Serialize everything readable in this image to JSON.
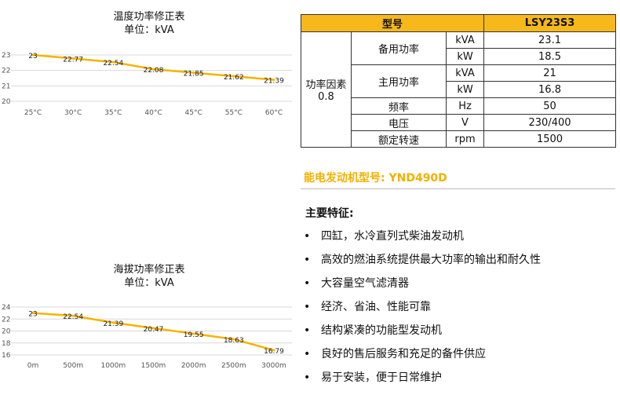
{
  "chart_data": [
    {
      "type": "line",
      "title": "温度功率修正表",
      "subtitle": "单位：kVA",
      "categories": [
        "25°C",
        "30°C",
        "35°C",
        "40°C",
        "45°C",
        "55°C",
        "60°C"
      ],
      "values": [
        23,
        22.77,
        22.54,
        22.08,
        21.85,
        21.62,
        21.39
      ],
      "data_labels": [
        "23",
        "22.77",
        "22.54",
        "22.08",
        "21.85",
        "21.62",
        "21.39"
      ],
      "yticks": [
        "23",
        "22",
        "21",
        "20"
      ],
      "ylim": [
        20,
        23
      ],
      "grid": true,
      "color": "#f5b400"
    },
    {
      "type": "line",
      "title": "海拔功率修正表",
      "subtitle": "单位：kVA",
      "categories": [
        "0m",
        "500m",
        "1000m",
        "1500m",
        "2000m",
        "2500m",
        "3000m"
      ],
      "values": [
        23,
        22.54,
        21.39,
        20.47,
        19.55,
        18.63,
        16.79
      ],
      "data_labels": [
        "23",
        "22.54",
        "21.39",
        "20.47",
        "19.55",
        "18.63",
        "16.79"
      ],
      "yticks": [
        "24",
        "22",
        "20",
        "18",
        "16"
      ],
      "ylim": [
        16,
        24
      ],
      "grid": true,
      "color": "#f5b400"
    }
  ],
  "spec_table": {
    "header_label": "型号",
    "header_value": "LSY23S3",
    "power_factor_label": "功率因素",
    "power_factor_value": "0.8",
    "standby_label": "备用功率",
    "prime_label": "主用功率",
    "standby_kva_unit": "kVA",
    "standby_kva": "23.1",
    "standby_kw_unit": "kW",
    "standby_kw": "18.5",
    "prime_kva_unit": "kVA",
    "prime_kva": "21",
    "prime_kw_unit": "kW",
    "prime_kw": "16.8",
    "freq_label": "频率",
    "freq_unit": "Hz",
    "freq_value": "50",
    "voltage_label": "电压",
    "voltage_unit": "V",
    "voltage_value": "230/400",
    "speed_label": "额定转速",
    "speed_unit": "rpm",
    "speed_value": "1500"
  },
  "engine_model": "能电发动机型号: YND490D",
  "features_title": "主要特征:",
  "bullet": "•",
  "features": [
    "四缸，水冷直列式柴油发动机",
    "高效的燃油系统提供最大功率的输出和耐久性",
    "大容量空气滤清器",
    "经济、省油、性能可靠",
    "结构紧凑的功能型发动机",
    "良好的售后服务和充足的备件供应",
    "易于安装，便于日常维护"
  ],
  "colors": {
    "accent": "#f5b400",
    "header_bg": "#f6b81b",
    "engine_text": "#f2b100"
  }
}
